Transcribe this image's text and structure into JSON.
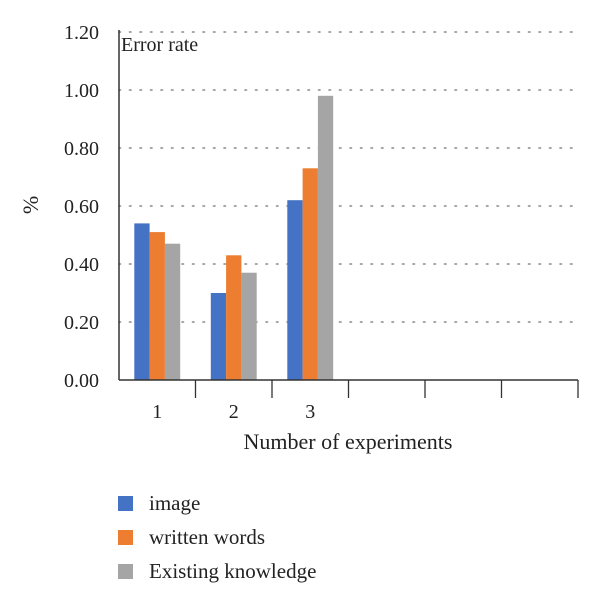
{
  "chart_data": {
    "type": "bar",
    "title": "Error rate",
    "xlabel": "Number of experiments",
    "ylabel": "%",
    "categories": [
      "1",
      "2",
      "3"
    ],
    "empty_slots": 3,
    "ylim": [
      0,
      1.2
    ],
    "yticks": [
      "0.00",
      "0.20",
      "0.40",
      "0.60",
      "0.80",
      "1.00",
      "1.20"
    ],
    "grid": true,
    "legend_position": "bottom-left",
    "series": [
      {
        "name": "image",
        "color": "#4472C4",
        "values": [
          0.54,
          0.3,
          0.62
        ]
      },
      {
        "name": "written words",
        "color": "#ED7D31",
        "values": [
          0.51,
          0.43,
          0.73
        ]
      },
      {
        "name": "Existing knowledge",
        "color": "#A5A5A5",
        "values": [
          0.47,
          0.37,
          0.98
        ]
      }
    ]
  }
}
